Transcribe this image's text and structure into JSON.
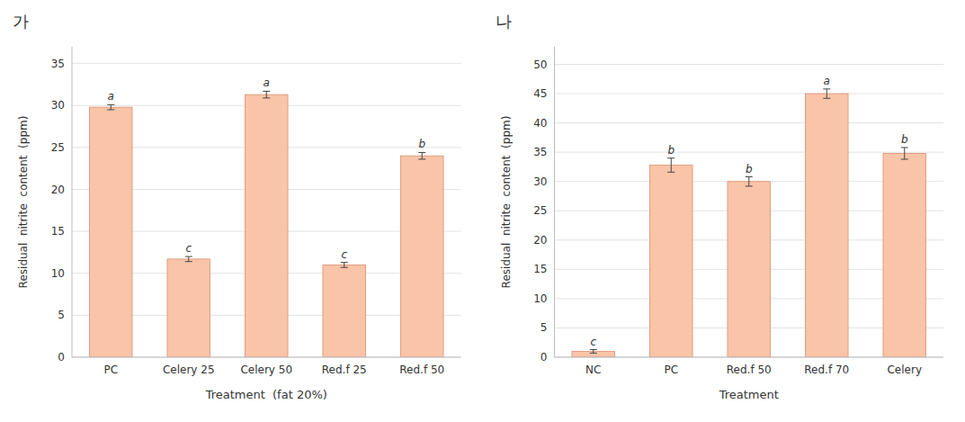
{
  "chart_data": [
    {
      "type": "bar",
      "title": "가",
      "categories": [
        "PC",
        "Celery 25",
        "Celery 50",
        "Red.f 25",
        "Red.f 50"
      ],
      "values": [
        29.8,
        11.7,
        31.3,
        11.0,
        24.0
      ],
      "errors": [
        0.3,
        0.3,
        0.4,
        0.3,
        0.4
      ],
      "annotations": [
        "a",
        "c",
        "a",
        "c",
        "b"
      ],
      "xlabel": "Treatment  (fat 20%)",
      "ylabel": "Residual  nitrite  content  (ppm)",
      "ylim": [
        0,
        37
      ],
      "yticks": [
        0,
        5,
        10,
        15,
        20,
        25,
        30,
        35
      ],
      "grid": true,
      "color": "#F9C4A8"
    },
    {
      "type": "bar",
      "title": "나",
      "categories": [
        "NC",
        "PC",
        "Red.f 50",
        "Red.f 70",
        "Celery"
      ],
      "values": [
        1.0,
        32.8,
        30.0,
        45.0,
        34.8
      ],
      "errors": [
        0.3,
        1.2,
        0.8,
        0.8,
        1.0
      ],
      "annotations": [
        "c",
        "b",
        "b",
        "a",
        "b"
      ],
      "xlabel": "Treatment",
      "ylabel": "Residual  nitrite  content  (ppm)",
      "ylim": [
        0,
        53
      ],
      "yticks": [
        0,
        5,
        10,
        15,
        20,
        25,
        30,
        35,
        40,
        45,
        50
      ],
      "grid": true,
      "color": "#F9C4A8"
    }
  ]
}
